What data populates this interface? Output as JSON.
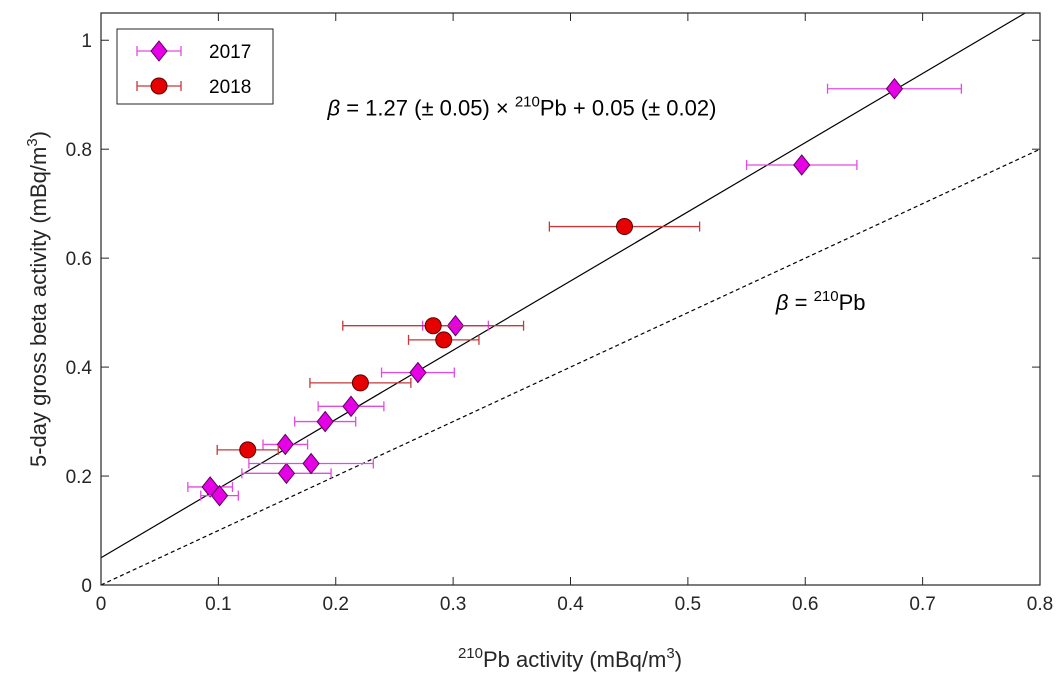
{
  "chart_data": {
    "type": "scatter",
    "xlabel": {
      "sup": "210",
      "main": "Pb activity (mBq/m",
      "unit_sup": "3",
      "close": ")"
    },
    "ylabel": {
      "main": "5-day gross beta activity (mBq/m",
      "unit_sup": "3",
      "close": ")"
    },
    "xlim": [
      0,
      0.8
    ],
    "ylim": [
      0,
      1.05
    ],
    "xticks": [
      "0",
      "0.1",
      "0.2",
      "0.3",
      "0.4",
      "0.5",
      "0.6",
      "0.7",
      "0.8"
    ],
    "xtick_values": [
      0,
      0.1,
      0.2,
      0.3,
      0.4,
      0.5,
      0.6,
      0.7,
      0.8
    ],
    "yticks": [
      "0",
      "0.2",
      "0.4",
      "0.6",
      "0.8",
      "1"
    ],
    "ytick_values": [
      0,
      0.2,
      0.4,
      0.6,
      0.8,
      1.0
    ],
    "grid": false,
    "legend_position": "top-left",
    "series": [
      {
        "name": "2017",
        "marker": "diamond",
        "color": "#e600e6",
        "edge_color": "#5a005a",
        "errorbar_color": "#e24be2",
        "points": [
          {
            "x": 0.093,
            "y": 0.18,
            "xerr": 0.019
          },
          {
            "x": 0.101,
            "y": 0.164,
            "xerr": 0.016
          },
          {
            "x": 0.157,
            "y": 0.258,
            "xerr": 0.019
          },
          {
            "x": 0.158,
            "y": 0.205,
            "xerr": 0.038
          },
          {
            "x": 0.179,
            "y": 0.223,
            "xerr": 0.053
          },
          {
            "x": 0.191,
            "y": 0.3,
            "xerr": 0.026
          },
          {
            "x": 0.213,
            "y": 0.328,
            "xerr": 0.028
          },
          {
            "x": 0.27,
            "y": 0.39,
            "xerr": 0.031
          },
          {
            "x": 0.302,
            "y": 0.476,
            "xerr": 0.028
          },
          {
            "x": 0.597,
            "y": 0.771,
            "xerr": 0.047
          },
          {
            "x": 0.676,
            "y": 0.911,
            "xerr": 0.057
          }
        ]
      },
      {
        "name": "2018",
        "marker": "circle",
        "color": "#e60000",
        "edge_color": "#5a0000",
        "errorbar_color": "#c43a3a",
        "points": [
          {
            "x": 0.125,
            "y": 0.248,
            "xerr": 0.026
          },
          {
            "x": 0.221,
            "y": 0.371,
            "xerr": 0.043
          },
          {
            "x": 0.283,
            "y": 0.476,
            "xerr": 0.077
          },
          {
            "x": 0.292,
            "y": 0.45,
            "xerr": 0.03
          },
          {
            "x": 0.446,
            "y": 0.658,
            "xerr": 0.064
          }
        ]
      }
    ],
    "lines": [
      {
        "label": "fit",
        "slope": 1.27,
        "intercept": 0.05,
        "style": "solid",
        "color": "#000000"
      },
      {
        "label": "one-to-one",
        "slope": 1.0,
        "intercept": 0.0,
        "style": "dashed",
        "color": "#000000"
      }
    ],
    "annotations": [
      {
        "id": "fit-equation",
        "beta": "β",
        "eq_pre": " = 1.27 (± 0.05) × ",
        "sup": "210",
        "eq_post": "Pb + 0.05 (± 0.02)",
        "x": 0.193,
        "y": 0.862
      },
      {
        "id": "one-to-one-label",
        "beta": "β",
        "eq_pre": " = ",
        "sup": "210",
        "eq_post": "Pb",
        "x": 0.575,
        "y": 0.505
      }
    ]
  }
}
